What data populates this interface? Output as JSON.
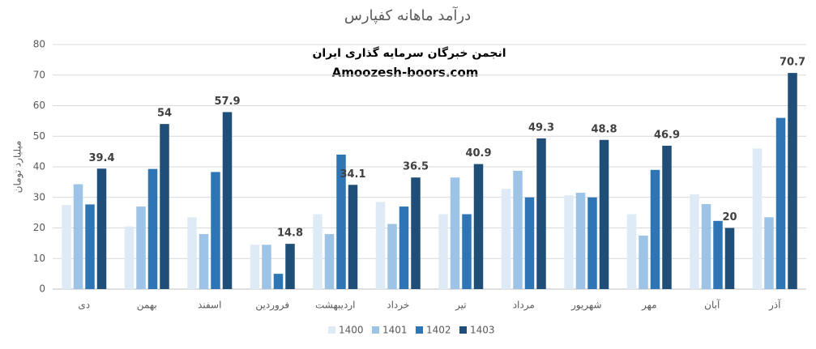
{
  "chart_data": {
    "type": "bar",
    "title": "درآمد ماهانه کفپارس",
    "annotations": [
      "انجمن خبرگان سرمایه گذاری ایران",
      "Amoozesh-boors.com"
    ],
    "y_label": "میلیارد تومان",
    "categories": [
      "دی",
      "بهمن",
      "اسفند",
      "فروردین",
      "اردیبهشت",
      "خرداد",
      "تیر",
      "مرداد",
      "شهریور",
      "مهر",
      "آبان",
      "آذر"
    ],
    "series": [
      {
        "name": "1400",
        "color": "#deebf7",
        "values": [
          27.5,
          20.5,
          23.5,
          14.5,
          24.5,
          28.5,
          24.5,
          32.8,
          30.7,
          24.5,
          31,
          46
        ]
      },
      {
        "name": "1401",
        "color": "#9dc3e6",
        "values": [
          34.3,
          27,
          18,
          14.5,
          18,
          21.3,
          36.5,
          38.7,
          31.5,
          17.5,
          27.8,
          23.5
        ]
      },
      {
        "name": "1402",
        "color": "#2e75b6",
        "values": [
          27.7,
          39.3,
          38.3,
          5,
          44,
          27,
          24.5,
          30,
          30,
          39,
          22.3,
          56
        ]
      },
      {
        "name": "1403",
        "color": "#1f4e79",
        "values": [
          39.4,
          54,
          57.9,
          14.8,
          34.1,
          36.5,
          40.9,
          49.3,
          48.8,
          46.9,
          20,
          70.7
        ],
        "data_labels": true
      }
    ],
    "ylim": [
      0,
      80
    ],
    "yticks": [
      0,
      10,
      20,
      30,
      40,
      50,
      60,
      70,
      80
    ],
    "grid": true,
    "legend": "bottom"
  }
}
